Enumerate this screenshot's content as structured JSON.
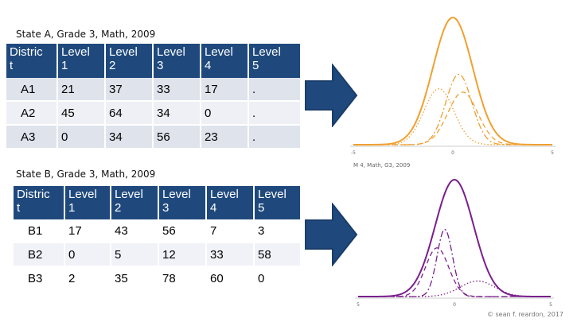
{
  "table_a": {
    "caption": "State A, Grade 3, Math, 2009",
    "headers": [
      [
        "Distric",
        "t"
      ],
      [
        "Level",
        "1"
      ],
      [
        "Level",
        "2"
      ],
      [
        "Level",
        "3"
      ],
      [
        "Level",
        "4"
      ],
      [
        "Level",
        "5"
      ]
    ],
    "rows": [
      [
        "A1",
        "21",
        "37",
        "33",
        "17",
        "."
      ],
      [
        "A2",
        "45",
        "64",
        "34",
        "0",
        "."
      ],
      [
        "A3",
        "0",
        "34",
        "56",
        "23",
        "."
      ]
    ]
  },
  "table_b": {
    "caption": "State B, Grade 3, Math, 2009",
    "headers": [
      [
        "Distric",
        "t"
      ],
      [
        "Level",
        "1"
      ],
      [
        "Level",
        "2"
      ],
      [
        "Level",
        "3"
      ],
      [
        "Level",
        "4"
      ],
      [
        "Level",
        "5"
      ]
    ],
    "rows": [
      [
        "B1",
        "17",
        "43",
        "56",
        "7",
        "3"
      ],
      [
        "B2",
        "0",
        "5",
        "12",
        "33",
        "58"
      ],
      [
        "B3",
        "2",
        "35",
        "78",
        "60",
        "0"
      ]
    ]
  },
  "chart_data": [
    {
      "type": "line",
      "x_ticks": [
        "-5",
        "0",
        "5"
      ],
      "xlim": [
        -5,
        5
      ],
      "caption": "M 4, Math, G3, 2009",
      "color": "#f0a030",
      "total": {
        "mean": 0,
        "sd": 1.0
      },
      "components": [
        {
          "mean": -0.7,
          "sd": 0.75,
          "weight": 0.33,
          "style": "dotted"
        },
        {
          "mean": 0.3,
          "sd": 0.65,
          "weight": 0.36,
          "style": "dashdot"
        },
        {
          "mean": 0.5,
          "sd": 0.75,
          "weight": 0.31,
          "style": "dashed"
        }
      ]
    },
    {
      "type": "line",
      "x_ticks": [
        "5",
        "0",
        "5"
      ],
      "xlim": [
        -5,
        5
      ],
      "color": "#7a1f8c",
      "total": {
        "mean": 0,
        "sd": 1.0
      },
      "components": [
        {
          "mean": -0.9,
          "sd": 0.6,
          "weight": 0.25,
          "style": "dashed"
        },
        {
          "mean": -0.5,
          "sd": 0.4,
          "weight": 0.23,
          "style": "dashdot"
        },
        {
          "mean": 1.2,
          "sd": 0.9,
          "weight": 0.12,
          "style": "dotted"
        }
      ]
    }
  ],
  "footer": "© sean f. reardon, 2017"
}
